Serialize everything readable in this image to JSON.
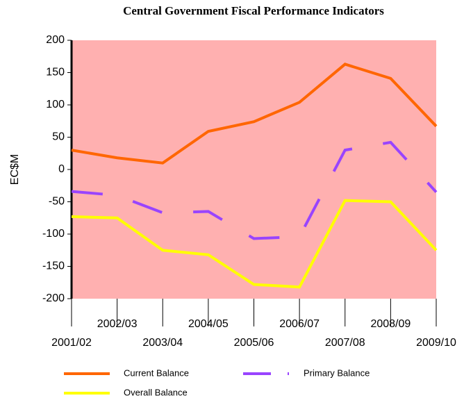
{
  "chart_data": {
    "type": "line",
    "title": "Central Government Fiscal Performance Indicators",
    "y_label": "EC$M",
    "categories": [
      "2001/02",
      "2002/03",
      "2003/04",
      "2004/05",
      "2005/06",
      "2006/07",
      "2007/08",
      "2008/09",
      "2009/10"
    ],
    "series": [
      {
        "name": "Current Balance",
        "color": "#ff6600",
        "dashed": false,
        "values": [
          30,
          18,
          10,
          59,
          74,
          104,
          163,
          141,
          67
        ]
      },
      {
        "name": "Primary Balance",
        "color": "#9944ff",
        "dashed": true,
        "values": [
          -34,
          -40,
          -67,
          -65,
          -107,
          -104,
          30,
          42,
          -35
        ]
      },
      {
        "name": "Overall Balance",
        "color": "#ffff00",
        "dashed": false,
        "values": [
          -73,
          -75,
          -125,
          -132,
          -178,
          -182,
          -48,
          -50,
          -125
        ]
      }
    ],
    "ylim": [
      -200,
      200
    ],
    "yticks": [
      -200,
      -150,
      -100,
      -50,
      0,
      50,
      100,
      150,
      200
    ],
    "plot_background": "#ffb0b0",
    "grid": false
  }
}
